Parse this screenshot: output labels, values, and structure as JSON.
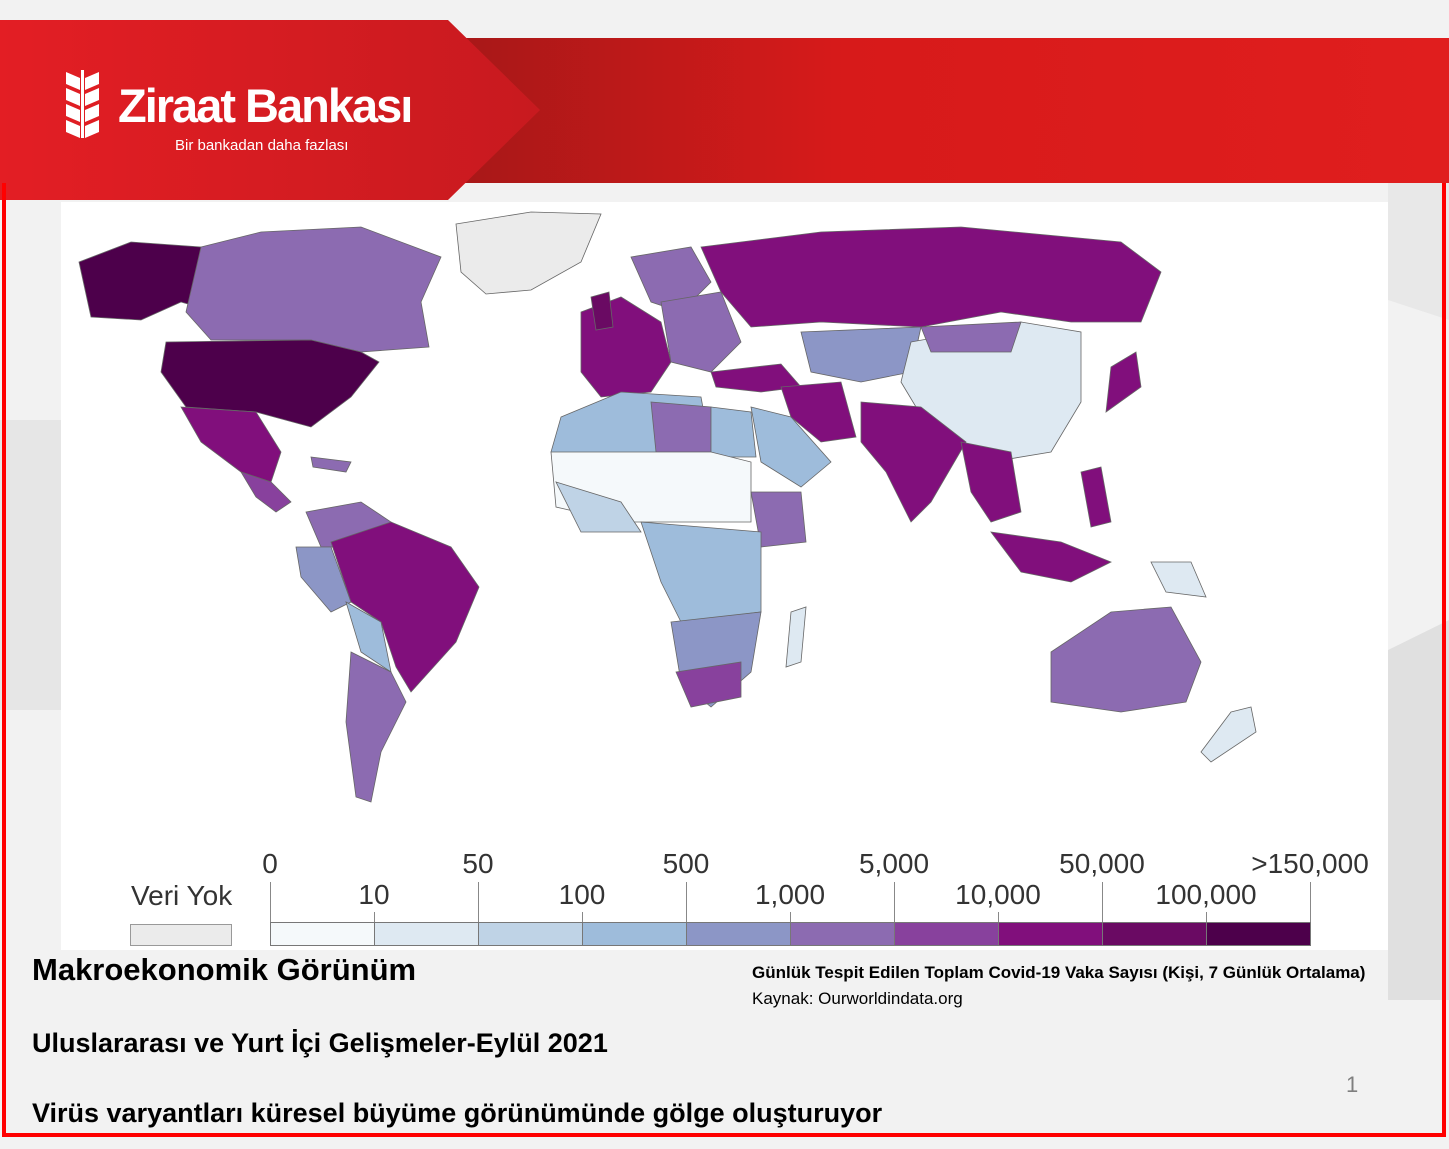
{
  "brand": {
    "name": "Ziraat Bankası",
    "tagline": "Bir bankadan daha fazlası"
  },
  "map": {
    "legend": {
      "no_data_label": "Veri Yok",
      "upper_labels": [
        "0",
        "50",
        "500",
        "5,000",
        "50,000",
        ">150,000"
      ],
      "lower_labels": [
        "10",
        "100",
        "1,000",
        "10,000",
        "100,000"
      ],
      "colors": [
        "#f5f9fb",
        "#dee9f2",
        "#bfd3e6",
        "#9ebcdb",
        "#8c96c6",
        "#8c6bb1",
        "#88419d",
        "#810f7c",
        "#6a0a63",
        "#4d004b"
      ],
      "no_data_color": "#ebebeb"
    }
  },
  "caption": {
    "title": "Günlük Tespit Edilen Toplam Covid-19 Vaka Sayısı  (Kişi, 7 Günlük Ortalama)",
    "source": "Kaynak:  Ourworldindata.org"
  },
  "slide": {
    "title": "Makroekonomik Görünüm",
    "subtitle": "Uluslararası ve Yurt İçi Gelişmeler-Eylül 2021",
    "headline": "Virüs varyantları küresel büyüme görünümünde gölge oluşturuyor",
    "page_number": "1"
  }
}
